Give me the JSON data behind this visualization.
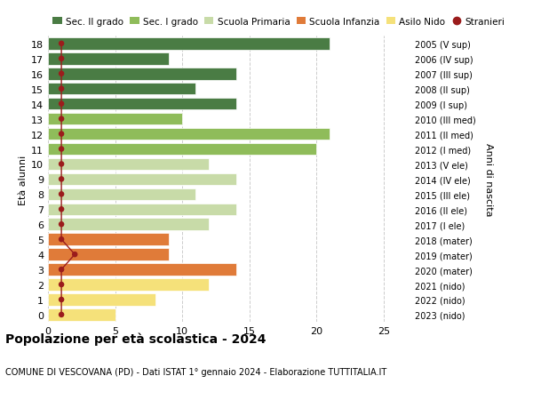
{
  "ages": [
    0,
    1,
    2,
    3,
    4,
    5,
    6,
    7,
    8,
    9,
    10,
    11,
    12,
    13,
    14,
    15,
    16,
    17,
    18
  ],
  "right_labels": [
    "2023 (nido)",
    "2022 (nido)",
    "2021 (nido)",
    "2020 (mater)",
    "2019 (mater)",
    "2018 (mater)",
    "2017 (I ele)",
    "2016 (II ele)",
    "2015 (III ele)",
    "2014 (IV ele)",
    "2013 (V ele)",
    "2012 (I med)",
    "2011 (II med)",
    "2010 (III med)",
    "2009 (I sup)",
    "2008 (II sup)",
    "2007 (III sup)",
    "2006 (IV sup)",
    "2005 (V sup)"
  ],
  "bar_values": [
    5,
    8,
    12,
    14,
    9,
    9,
    12,
    14,
    11,
    14,
    12,
    20,
    21,
    10,
    14,
    11,
    14,
    9,
    21
  ],
  "stranieri_values": [
    1,
    1,
    1,
    1,
    2,
    1,
    1,
    1,
    1,
    1,
    1,
    1,
    1,
    1,
    1,
    1,
    1,
    1,
    1
  ],
  "bar_colors": [
    "#f5e17a",
    "#f5e17a",
    "#f5e17a",
    "#e07b39",
    "#e07b39",
    "#e07b39",
    "#c8dba8",
    "#c8dba8",
    "#c8dba8",
    "#c8dba8",
    "#c8dba8",
    "#8fbc5a",
    "#8fbc5a",
    "#8fbc5a",
    "#4a7c44",
    "#4a7c44",
    "#4a7c44",
    "#4a7c44",
    "#4a7c44"
  ],
  "legend_labels": [
    "Sec. II grado",
    "Sec. I grado",
    "Scuola Primaria",
    "Scuola Infanzia",
    "Asilo Nido",
    "Stranieri"
  ],
  "legend_colors": [
    "#4a7c44",
    "#8fbc5a",
    "#c8dba8",
    "#e07b39",
    "#f5e17a",
    "#9b1c1c"
  ],
  "stranieri_color": "#9b1c1c",
  "title": "Popolazione per età scolastica - 2024",
  "subtitle": "COMUNE DI VESCOVANA (PD) - Dati ISTAT 1° gennaio 2024 - Elaborazione TUTTITALIA.IT",
  "ylabel_left": "Età alunni",
  "ylabel_right": "Anni di nascita",
  "xticks": [
    0,
    5,
    10,
    15,
    20,
    25
  ],
  "xlim": [
    0,
    27
  ],
  "background_color": "#ffffff",
  "grid_color": "#cccccc"
}
